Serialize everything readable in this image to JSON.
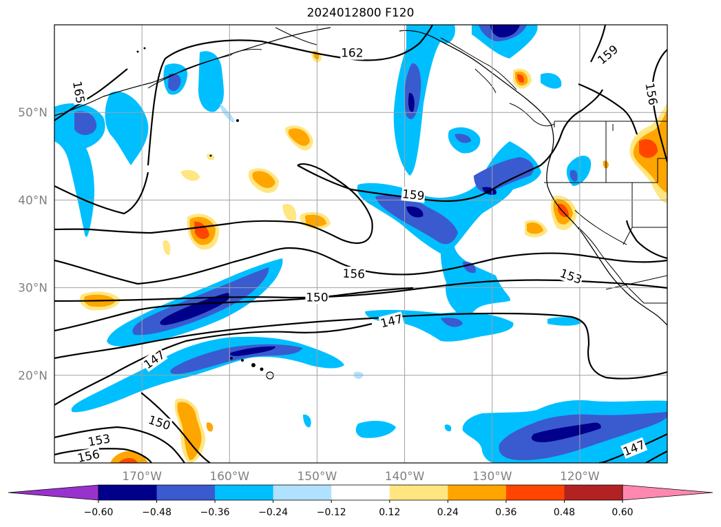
{
  "title": "2024012800 F120",
  "map": {
    "extent": {
      "lon_min": -180,
      "lon_max": -110,
      "lat_min": 10,
      "lat_max": 60
    },
    "projection": "PlateCarree",
    "grid": true,
    "lat_ticks": [
      {
        "value": 20,
        "label": "20°N"
      },
      {
        "value": 30,
        "label": "30°N"
      },
      {
        "value": 40,
        "label": "40°N"
      },
      {
        "value": 50,
        "label": "50°N"
      }
    ],
    "lon_ticks": [
      {
        "value": -170,
        "label": "170°W"
      },
      {
        "value": -160,
        "label": "160°W"
      },
      {
        "value": -150,
        "label": "150°W"
      },
      {
        "value": -140,
        "label": "140°W"
      },
      {
        "value": -130,
        "label": "130°W"
      },
      {
        "value": -120,
        "label": "120°W"
      }
    ],
    "contour_labels": [
      {
        "text": "162",
        "lon": -146.0,
        "lat": 56.8,
        "rot": 0
      },
      {
        "text": "165",
        "lon": -177.2,
        "lat": 52.3,
        "rot": 80
      },
      {
        "text": "159",
        "lon": -139.0,
        "lat": 40.6,
        "rot": 6
      },
      {
        "text": "156",
        "lon": -145.8,
        "lat": 31.6,
        "rot": 2
      },
      {
        "text": "150",
        "lon": -150.0,
        "lat": 28.9,
        "rot": 0
      },
      {
        "text": "147",
        "lon": -141.5,
        "lat": 26.2,
        "rot": -14
      },
      {
        "text": "153",
        "lon": -121.0,
        "lat": 31.3,
        "rot": 20
      },
      {
        "text": "147",
        "lon": -168.6,
        "lat": 21.8,
        "rot": -35
      },
      {
        "text": "150",
        "lon": -168.0,
        "lat": 14.6,
        "rot": 18
      },
      {
        "text": "153",
        "lon": -174.9,
        "lat": 12.6,
        "rot": -10
      },
      {
        "text": "156",
        "lon": -176.1,
        "lat": 10.8,
        "rot": -12
      },
      {
        "text": "159",
        "lon": -116.8,
        "lat": 56.6,
        "rot": -40
      },
      {
        "text": "156",
        "lon": -111.8,
        "lat": 52.1,
        "rot": 80
      },
      {
        "text": "147",
        "lon": -113.8,
        "lat": 11.7,
        "rot": -22
      }
    ]
  },
  "colorbar": {
    "levels": [
      -0.6,
      -0.48,
      -0.36,
      -0.24,
      -0.12,
      0.12,
      0.24,
      0.36,
      0.48,
      0.6
    ],
    "labels": [
      "−0.60",
      "−0.48",
      "−0.36",
      "−0.24",
      "−0.12",
      "0.12",
      "0.24",
      "0.36",
      "0.48",
      "0.60"
    ],
    "colors": [
      "#9932cc",
      "#00008b",
      "#3a5bcf",
      "#00bfff",
      "#b0e2ff",
      "#ffffff",
      "#ffe680",
      "#ffa500",
      "#ff4500",
      "#b22222",
      "#ff88b0"
    ],
    "extend": "both"
  },
  "palette": {
    "dark_blue": "#00008b",
    "mid_blue": "#3a5bcf",
    "light_blue": "#00bfff",
    "pale_blue": "#b0e2ff",
    "pale_yellow": "#ffe680",
    "orange": "#ffa500",
    "red_orange": "#ff4500"
  }
}
